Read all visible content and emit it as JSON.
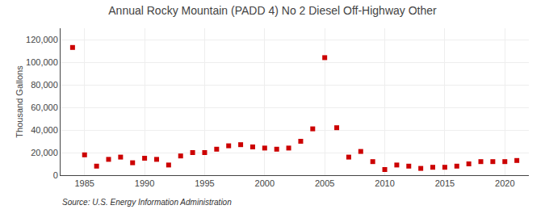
{
  "chart_data": {
    "type": "scatter",
    "title": "Annual Rocky Mountain (PADD 4) No 2 Diesel Off-Highway Other",
    "ylabel": "Thousand Gallons",
    "annotations": [
      "Source: U.S. Energy Information Administration"
    ],
    "color": "#cc0000",
    "marker": "square",
    "grid": true,
    "xlim": [
      1983,
      2022
    ],
    "ylim": [
      0,
      130000
    ],
    "xticks": [
      1985,
      1990,
      1995,
      2000,
      2005,
      2010,
      2015,
      2020
    ],
    "yticks": [
      0,
      {
        "value": 20000,
        "label": "20,000"
      },
      {
        "value": 40000,
        "label": "40,000"
      },
      {
        "value": 60000,
        "label": "60,000"
      },
      {
        "value": 80000,
        "label": "80,000"
      },
      {
        "value": 100000,
        "label": "100,000"
      },
      {
        "value": 120000,
        "label": "120,000"
      }
    ],
    "x": [
      1984,
      1985,
      1986,
      1987,
      1988,
      1989,
      1990,
      1991,
      1992,
      1993,
      1994,
      1995,
      1996,
      1997,
      1998,
      1999,
      2000,
      2001,
      2002,
      2003,
      2004,
      2005,
      2006,
      2007,
      2008,
      2009,
      2010,
      2011,
      2012,
      2013,
      2014,
      2015,
      2016,
      2017,
      2018,
      2019,
      2020,
      2021
    ],
    "values": [
      113000,
      18000,
      8000,
      14000,
      16000,
      11000,
      15000,
      14000,
      9000,
      17000,
      20000,
      20000,
      23000,
      26000,
      27000,
      25000,
      24000,
      23000,
      24000,
      30000,
      41000,
      104000,
      42000,
      16000,
      21000,
      12000,
      5000,
      9000,
      8000,
      6000,
      7000,
      7000,
      8000,
      10000,
      12000,
      12000,
      12000,
      13000
    ]
  }
}
